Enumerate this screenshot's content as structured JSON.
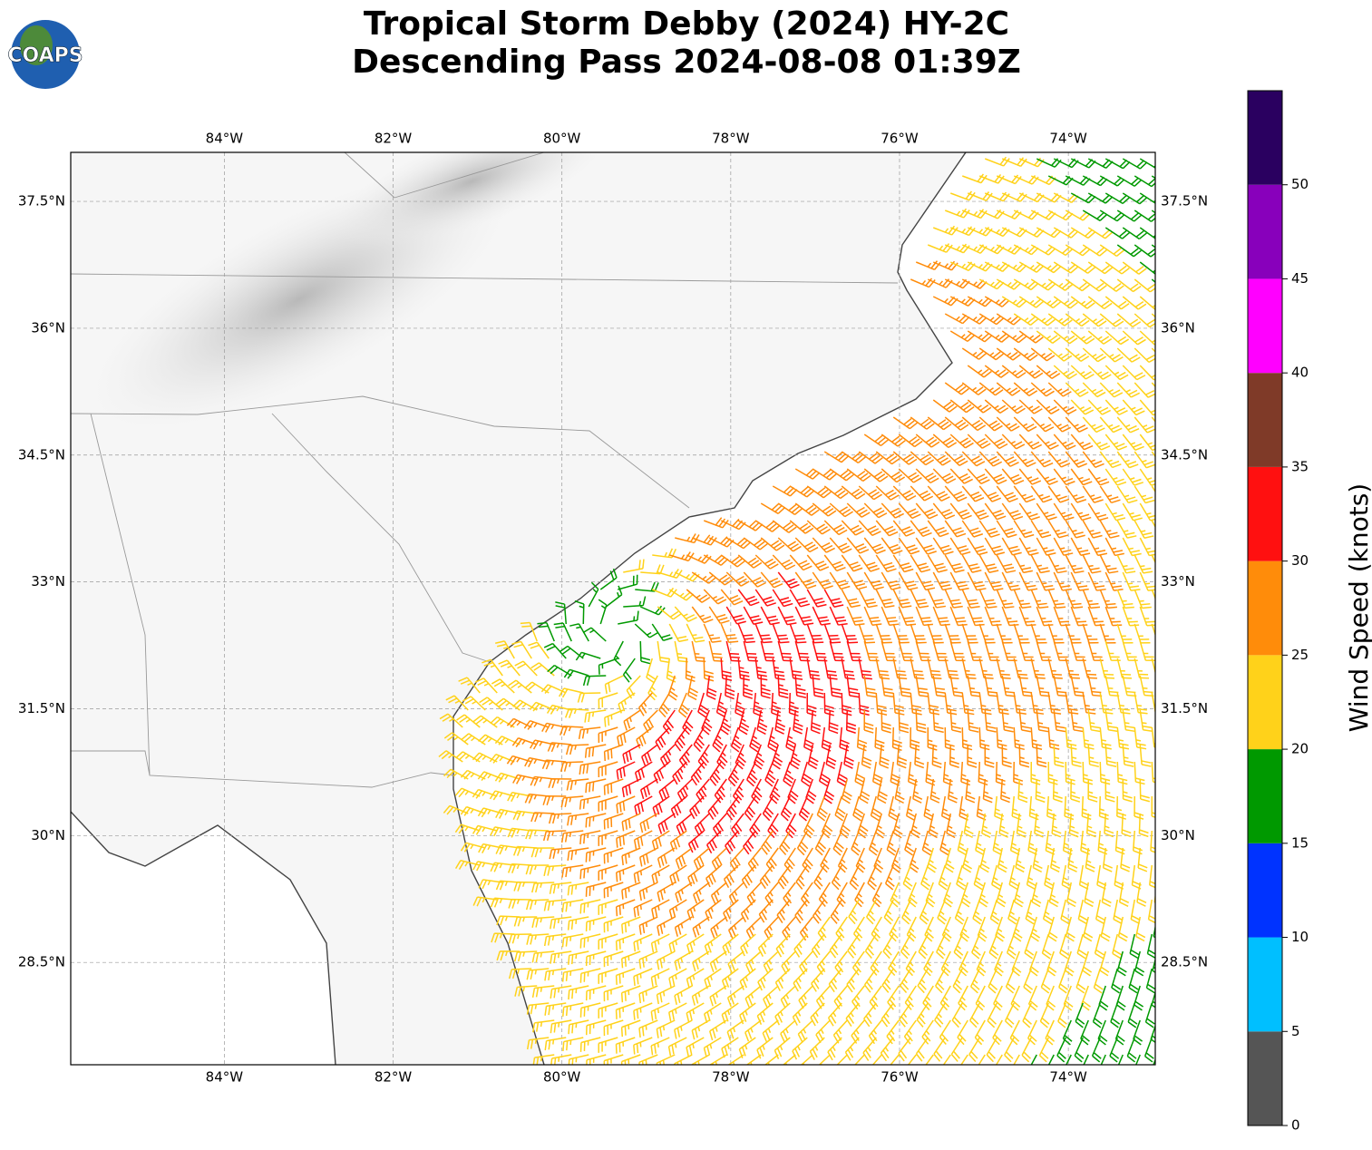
{
  "chart_data": {
    "type": "map",
    "title": "Tropical Storm Debby (2024) HY-2C",
    "subtitle": "Descending Pass 2024-08-08 01:39Z",
    "logo_text": "COAPS",
    "xlim": [
      -85.82,
      -72.97
    ],
    "ylim": [
      27.29,
      38.08
    ],
    "xticks": [
      {
        "value": -84,
        "label": "84°W"
      },
      {
        "value": -82,
        "label": "82°W"
      },
      {
        "value": -80,
        "label": "80°W"
      },
      {
        "value": -78,
        "label": "78°W"
      },
      {
        "value": -76,
        "label": "76°W"
      },
      {
        "value": -74,
        "label": "74°W"
      }
    ],
    "yticks": [
      {
        "value": 28.5,
        "label": "28.5°N"
      },
      {
        "value": 30,
        "label": "30°N"
      },
      {
        "value": 31.5,
        "label": "31.5°N"
      },
      {
        "value": 33,
        "label": "33°N"
      },
      {
        "value": 34.5,
        "label": "34.5°N"
      },
      {
        "value": 36,
        "label": "36°N"
      },
      {
        "value": 37.5,
        "label": "37.5°N"
      }
    ],
    "grid": true,
    "colorbar": {
      "label": "Wind Speed (knots)",
      "lim": [
        0,
        55
      ],
      "bounds": [
        0,
        5,
        10,
        15,
        20,
        25,
        30,
        35,
        40,
        45,
        50,
        55
      ],
      "colors": [
        "#555555",
        "#00bfff",
        "#0033ff",
        "#009900",
        "#ffd21a",
        "#ff8c0a",
        "#ff1010",
        "#7f3a28",
        "#ff00ff",
        "#8800bb",
        "#2a0060"
      ],
      "ticks": [
        0,
        5,
        10,
        15,
        20,
        25,
        30,
        35,
        40,
        45,
        50
      ]
    }
  }
}
